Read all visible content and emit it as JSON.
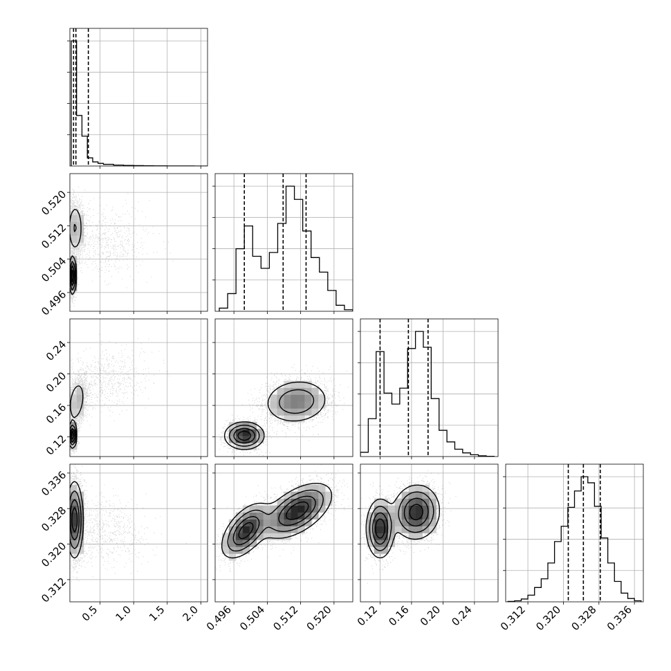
{
  "chart_data": {
    "type": "corner",
    "params": [
      {
        "range": [
          0.05,
          2.1
        ],
        "ticks": [
          0.5,
          1.0,
          1.5,
          2.0
        ],
        "tick_labels": [
          "0.5",
          "1.0",
          "1.5",
          "2.0"
        ]
      },
      {
        "range": [
          0.4915,
          0.5245
        ],
        "ticks": [
          0.496,
          0.504,
          0.512,
          0.52
        ],
        "tick_labels": [
          "0.496",
          "0.504",
          "0.512",
          "0.520"
        ]
      },
      {
        "range": [
          0.095,
          0.27
        ],
        "ticks": [
          0.12,
          0.16,
          0.2,
          0.24
        ],
        "tick_labels": [
          "0.12",
          "0.16",
          "0.20",
          "0.24"
        ]
      },
      {
        "range": [
          0.307,
          0.338
        ],
        "ticks": [
          0.312,
          0.32,
          0.328,
          0.336
        ],
        "tick_labels": [
          "0.312",
          "0.320",
          "0.328",
          "0.336"
        ]
      }
    ],
    "histograms": [
      {
        "bins": [
          0.07,
          0.15,
          0.23,
          0.31,
          0.39,
          0.47,
          0.55,
          0.7,
          0.85,
          1.0,
          1.15,
          1.3,
          1.5,
          1.7,
          1.9,
          2.1
        ],
        "counts": [
          2600,
          1050,
          620,
          170,
          85,
          55,
          35,
          20,
          12,
          8,
          5,
          3,
          2,
          1,
          0
        ],
        "quantiles": [
          0.105,
          0.14,
          0.325
        ]
      },
      {
        "bins": [
          0.4925,
          0.4945,
          0.4965,
          0.4985,
          0.5005,
          0.5025,
          0.5045,
          0.5065,
          0.5085,
          0.5105,
          0.5125,
          0.5145,
          0.5165,
          0.5185,
          0.5205,
          0.5225,
          0.5245
        ],
        "counts": [
          50,
          280,
          990,
          1350,
          870,
          680,
          930,
          1390,
          1980,
          1770,
          1270,
          850,
          620,
          330,
          95,
          25
        ],
        "quantiles": [
          0.4985,
          0.5078,
          0.5133
        ]
      },
      {
        "bins": [
          0.095,
          0.105,
          0.115,
          0.125,
          0.135,
          0.145,
          0.155,
          0.165,
          0.175,
          0.185,
          0.195,
          0.205,
          0.215,
          0.225,
          0.235,
          0.245,
          0.255,
          0.265
        ],
        "counts": [
          70,
          620,
          1720,
          1040,
          860,
          1120,
          1770,
          2050,
          1790,
          950,
          430,
          240,
          120,
          60,
          30,
          12,
          4
        ],
        "quantiles": [
          0.12,
          0.156,
          0.181
        ]
      },
      {
        "bins": [
          0.3075,
          0.309,
          0.3105,
          0.312,
          0.3135,
          0.315,
          0.3165,
          0.318,
          0.3195,
          0.321,
          0.3225,
          0.324,
          0.3255,
          0.327,
          0.3285,
          0.33,
          0.3315,
          0.333,
          0.3345,
          0.336,
          0.3375
        ],
        "counts": [
          8,
          20,
          55,
          130,
          280,
          450,
          760,
          1180,
          1480,
          1850,
          2170,
          2450,
          2330,
          1870,
          1250,
          760,
          400,
          170,
          65,
          20
        ],
        "quantiles": [
          0.3211,
          0.3245,
          0.3283
        ]
      }
    ],
    "pairs": [
      {
        "x_param": 0,
        "y_param": 1,
        "components": [
          {
            "w": 0.45,
            "mx": 0.13,
            "sx": 0.06,
            "my": 0.5115,
            "sy": 0.0032,
            "rho": 0.0
          },
          {
            "w": 0.42,
            "mx": 0.09,
            "sx": 0.025,
            "my": 0.5,
            "sy": 0.0022,
            "rho": 0.0
          },
          {
            "w": 0.13,
            "mx": 0.55,
            "sx": 0.35,
            "my": 0.508,
            "sy": 0.004,
            "rho": 0.0
          }
        ]
      },
      {
        "x_param": 0,
        "y_param": 2,
        "components": [
          {
            "w": 0.4,
            "mx": 0.09,
            "sx": 0.03,
            "my": 0.122,
            "sy": 0.008,
            "rho": 0.0
          },
          {
            "w": 0.45,
            "mx": 0.15,
            "sx": 0.07,
            "my": 0.165,
            "sy": 0.015,
            "rho": 0.3
          },
          {
            "w": 0.15,
            "mx": 0.55,
            "sx": 0.35,
            "my": 0.192,
            "sy": 0.02,
            "rho": 0.3
          }
        ]
      },
      {
        "x_param": 1,
        "y_param": 2,
        "components": [
          {
            "w": 0.4,
            "mx": 0.4985,
            "sx": 0.0023,
            "my": 0.1215,
            "sy": 0.0085,
            "rho": 0.0
          },
          {
            "w": 0.6,
            "mx": 0.511,
            "sx": 0.004,
            "my": 0.165,
            "sy": 0.0145,
            "rho": 0.1
          }
        ]
      },
      {
        "x_param": 0,
        "y_param": 3,
        "components": [
          {
            "w": 0.85,
            "mx": 0.12,
            "sx": 0.06,
            "my": 0.3255,
            "sy": 0.0042,
            "rho": 0.0
          },
          {
            "w": 0.15,
            "mx": 0.55,
            "sx": 0.35,
            "my": 0.3235,
            "sy": 0.004,
            "rho": -0.2
          }
        ]
      },
      {
        "x_param": 1,
        "y_param": 3,
        "components": [
          {
            "w": 0.4,
            "mx": 0.4988,
            "sx": 0.0028,
            "my": 0.323,
            "sy": 0.003,
            "rho": 0.55
          },
          {
            "w": 0.6,
            "mx": 0.5112,
            "sx": 0.004,
            "my": 0.3275,
            "sy": 0.003,
            "rho": 0.55
          }
        ]
      },
      {
        "x_param": 2,
        "y_param": 3,
        "components": [
          {
            "w": 0.4,
            "mx": 0.12,
            "sx": 0.0085,
            "my": 0.3235,
            "sy": 0.0032,
            "rho": 0.0
          },
          {
            "w": 0.6,
            "mx": 0.166,
            "sx": 0.0145,
            "my": 0.3272,
            "sy": 0.003,
            "rho": 0.05
          }
        ]
      }
    ],
    "grid": true
  }
}
